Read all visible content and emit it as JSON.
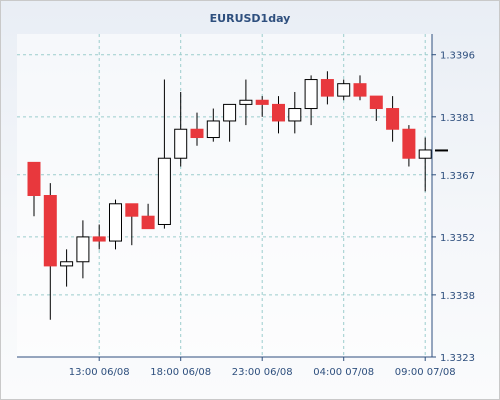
{
  "chart_data": {
    "type": "candlestick",
    "title": "EURUSD1day",
    "ylim": [
      1.3323,
      1.3401
    ],
    "y_ticks": [
      "1.3396",
      "1.3381",
      "1.3367",
      "1.3352",
      "1.3338",
      "1.3323"
    ],
    "x_ticks": [
      {
        "index": 4,
        "label": "13:00 06/08"
      },
      {
        "index": 9,
        "label": "18:00 06/08"
      },
      {
        "index": 14,
        "label": "23:00 06/08"
      },
      {
        "index": 19,
        "label": "04:00 07/08"
      },
      {
        "index": 24,
        "label": "09:00 07/08"
      }
    ],
    "grid": true,
    "colors": {
      "up": "#ffffff",
      "down": "#e8383d",
      "wick": "#000000",
      "grid": "#9ccdcd",
      "axis": "#2e4f7e"
    },
    "candles": [
      {
        "open": 1.337,
        "high": 1.337,
        "low": 1.3357,
        "close": 1.3362
      },
      {
        "open": 1.3362,
        "high": 1.3365,
        "low": 1.3332,
        "close": 1.3345
      },
      {
        "open": 1.3345,
        "high": 1.3349,
        "low": 1.334,
        "close": 1.3346
      },
      {
        "open": 1.3346,
        "high": 1.3356,
        "low": 1.3342,
        "close": 1.3352
      },
      {
        "open": 1.3352,
        "high": 1.3355,
        "low": 1.3349,
        "close": 1.3351
      },
      {
        "open": 1.3351,
        "high": 1.3361,
        "low": 1.3349,
        "close": 1.336
      },
      {
        "open": 1.336,
        "high": 1.336,
        "low": 1.335,
        "close": 1.3357
      },
      {
        "open": 1.3357,
        "high": 1.336,
        "low": 1.3354,
        "close": 1.3354
      },
      {
        "open": 1.3355,
        "high": 1.339,
        "low": 1.3354,
        "close": 1.3371
      },
      {
        "open": 1.3371,
        "high": 1.3387,
        "low": 1.3369,
        "close": 1.3378
      },
      {
        "open": 1.3378,
        "high": 1.3382,
        "low": 1.3374,
        "close": 1.3376
      },
      {
        "open": 1.3376,
        "high": 1.3383,
        "low": 1.3375,
        "close": 1.338
      },
      {
        "open": 1.338,
        "high": 1.3384,
        "low": 1.3375,
        "close": 1.3384
      },
      {
        "open": 1.3384,
        "high": 1.339,
        "low": 1.3379,
        "close": 1.3385
      },
      {
        "open": 1.3385,
        "high": 1.3386,
        "low": 1.3381,
        "close": 1.3384
      },
      {
        "open": 1.3384,
        "high": 1.3386,
        "low": 1.3377,
        "close": 1.338
      },
      {
        "open": 1.338,
        "high": 1.3387,
        "low": 1.3377,
        "close": 1.3383
      },
      {
        "open": 1.3383,
        "high": 1.3391,
        "low": 1.3379,
        "close": 1.339
      },
      {
        "open": 1.339,
        "high": 1.3392,
        "low": 1.3384,
        "close": 1.3386
      },
      {
        "open": 1.3386,
        "high": 1.339,
        "low": 1.3385,
        "close": 1.3389
      },
      {
        "open": 1.3389,
        "high": 1.3391,
        "low": 1.3385,
        "close": 1.3386
      },
      {
        "open": 1.3386,
        "high": 1.3386,
        "low": 1.338,
        "close": 1.3383
      },
      {
        "open": 1.3383,
        "high": 1.3386,
        "low": 1.3375,
        "close": 1.3378
      },
      {
        "open": 1.3378,
        "high": 1.3379,
        "low": 1.3369,
        "close": 1.3371
      },
      {
        "open": 1.3371,
        "high": 1.3376,
        "low": 1.3363,
        "close": 1.3373
      },
      {
        "open": 1.3373,
        "high": 1.3373,
        "low": 1.3373,
        "close": 1.3373
      }
    ]
  }
}
